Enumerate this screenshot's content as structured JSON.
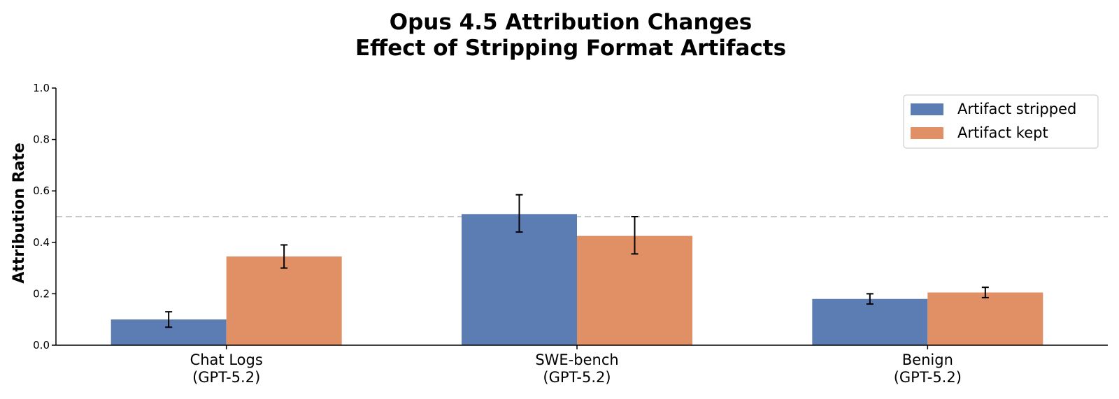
{
  "chart_data": {
    "type": "bar",
    "title_lines": [
      "Opus 4.5 Attribution Changes",
      "Effect of Stripping Format Artifacts"
    ],
    "xlabel": "",
    "ylabel": "Attribution Rate",
    "ylim": [
      0,
      1.0
    ],
    "yticks": [
      "0.0",
      "0.2",
      "0.4",
      "0.6",
      "0.8",
      "1.0"
    ],
    "categories": [
      [
        "Chat Logs",
        "(GPT-5.2)"
      ],
      [
        "SWE-bench",
        "(GPT-5.2)"
      ],
      [
        "Benign",
        "(GPT-5.2)"
      ]
    ],
    "series": [
      {
        "name": "Artifact stripped",
        "color": "#5b7db4",
        "values": [
          0.1,
          0.51,
          0.18
        ],
        "error_low": [
          0.07,
          0.44,
          0.16
        ],
        "error_high": [
          0.13,
          0.585,
          0.2
        ]
      },
      {
        "name": "Artifact kept",
        "color": "#e09064",
        "values": [
          0.345,
          0.425,
          0.205
        ],
        "error_low": [
          0.3,
          0.355,
          0.185
        ],
        "error_high": [
          0.39,
          0.5,
          0.225
        ]
      }
    ],
    "reference_line": {
      "y": 0.5,
      "style": "dashed",
      "color": "#c8c8c8"
    },
    "grid": false,
    "legend_position": "top-right"
  }
}
